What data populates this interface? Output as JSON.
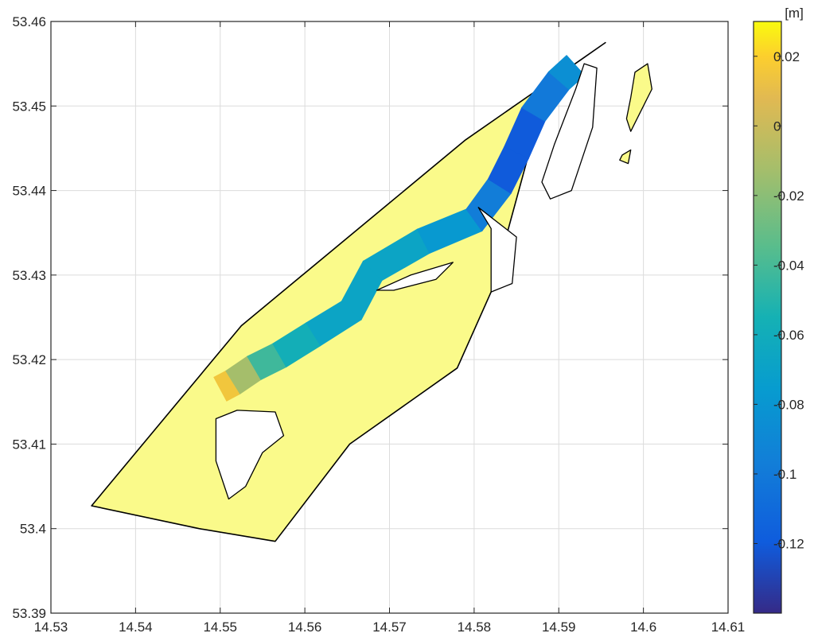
{
  "chart_data": {
    "type": "heatmap",
    "xlabel": "",
    "ylabel": "",
    "xlim": [
      14.53,
      14.61
    ],
    "ylim": [
      53.39,
      53.46
    ],
    "x_ticks": [
      "14.53",
      "14.54",
      "14.55",
      "14.56",
      "14.57",
      "14.58",
      "14.59",
      "14.6",
      "14.61"
    ],
    "y_ticks": [
      "53.39",
      "53.4",
      "53.41",
      "53.42",
      "53.43",
      "53.44",
      "53.45",
      "53.46"
    ],
    "grid": true,
    "colorbar": {
      "unit_label": "[m]",
      "range": [
        -0.14,
        0.03
      ],
      "ticks": [
        "0.02",
        "0",
        "-0.02",
        "-0.04",
        "-0.06",
        "-0.08",
        "-0.1",
        "-0.12"
      ],
      "colormap": "parula"
    },
    "domain_fill_color": "#FAFA8A",
    "outline_color": "#000000",
    "outer_domain": [
      [
        14.5348,
        53.4027
      ],
      [
        14.5525,
        53.424
      ],
      [
        14.579,
        53.446
      ],
      [
        14.5955,
        53.4575
      ],
      [
        14.5918,
        53.4549
      ],
      [
        14.588,
        53.45
      ],
      [
        14.582,
        53.428
      ],
      [
        14.578,
        53.419
      ],
      [
        14.5653,
        53.41
      ],
      [
        14.5565,
        53.3985
      ],
      [
        14.5475,
        53.4
      ]
    ],
    "river_channel_centerline": [
      [
        14.55,
        53.4165,
        0.02
      ],
      [
        14.5515,
        53.4173,
        0.01
      ],
      [
        14.554,
        53.419,
        -0.035
      ],
      [
        14.557,
        53.4205,
        -0.05
      ],
      [
        14.561,
        53.423,
        -0.065
      ],
      [
        14.5655,
        53.4258,
        -0.07
      ],
      [
        14.568,
        53.4305,
        -0.065
      ],
      [
        14.574,
        53.434,
        -0.07
      ],
      [
        14.58,
        53.4365,
        -0.085
      ],
      [
        14.583,
        53.4405,
        -0.11
      ],
      [
        14.585,
        53.4445,
        -0.13
      ],
      [
        14.587,
        53.449,
        -0.11
      ],
      [
        14.59,
        53.453,
        -0.09
      ],
      [
        14.592,
        53.4548,
        -0.08
      ]
    ],
    "river_channel_halfwidth": 0.0016,
    "islands": [
      [
        [
          14.5495,
          53.413
        ],
        [
          14.552,
          53.414
        ],
        [
          14.5565,
          53.4138
        ],
        [
          14.5575,
          53.411
        ],
        [
          14.555,
          53.409
        ],
        [
          14.553,
          53.405
        ],
        [
          14.551,
          53.4035
        ],
        [
          14.5495,
          53.408
        ]
      ],
      [
        [
          14.5685,
          53.4282
        ],
        [
          14.5725,
          53.43
        ],
        [
          14.5775,
          53.4315
        ],
        [
          14.5755,
          53.4295
        ],
        [
          14.5705,
          53.4282
        ]
      ],
      [
        [
          14.5805,
          53.438
        ],
        [
          14.582,
          53.4355
        ],
        [
          14.582,
          53.428
        ],
        [
          14.5845,
          53.429
        ],
        [
          14.585,
          53.4345
        ]
      ],
      [
        [
          14.593,
          53.455
        ],
        [
          14.5945,
          53.4545
        ],
        [
          14.594,
          53.4475
        ],
        [
          14.5915,
          53.44
        ],
        [
          14.589,
          53.439
        ],
        [
          14.588,
          53.441
        ],
        [
          14.5895,
          53.4455
        ],
        [
          14.592,
          53.452
        ]
      ]
    ],
    "side_island": [
      [
        14.599,
        53.454
      ],
      [
        14.6005,
        53.455
      ],
      [
        14.601,
        53.452
      ],
      [
        14.5995,
        53.449
      ],
      [
        14.5985,
        53.447
      ],
      [
        14.598,
        53.4485
      ],
      [
        14.5985,
        53.451
      ]
    ],
    "small_island": [
      [
        14.5975,
        53.4442
      ],
      [
        14.5985,
        53.4448
      ],
      [
        14.5982,
        53.4432
      ],
      [
        14.5972,
        53.4436
      ]
    ]
  }
}
